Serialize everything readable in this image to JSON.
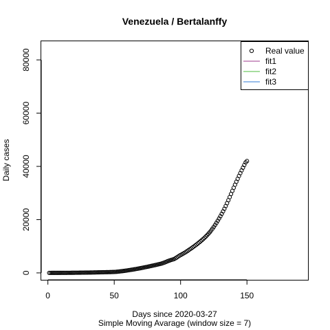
{
  "chart_data": {
    "type": "scatter",
    "title": "Venezuela / Bertalanffy",
    "xlabel": "Days since 2020-03-27",
    "xlabel2": "Simple Moving Avarage (window size = 7)",
    "ylabel": "Daily cases",
    "xlim": [
      -5,
      196
    ],
    "ylim": [
      -2600,
      87000
    ],
    "x_ticks": [
      0,
      50,
      100,
      150
    ],
    "y_ticks": [
      0,
      20000,
      40000,
      60000,
      80000
    ],
    "x_tick_labels": [
      "0",
      "50",
      "100",
      "150"
    ],
    "y_tick_labels": [
      "0",
      "20000",
      "40000",
      "60000",
      "80000"
    ],
    "grid": false,
    "legend_position": "top-right",
    "legend": [
      {
        "label": "Real value",
        "kind": "point",
        "color": "#000000"
      },
      {
        "label": "fit1",
        "kind": "line",
        "color": "#9e3a8c"
      },
      {
        "label": "fit2",
        "kind": "line",
        "color": "#4dbb3c"
      },
      {
        "label": "fit3",
        "kind": "line",
        "color": "#2f7bd6"
      }
    ],
    "series": [
      {
        "name": "Real value",
        "marker": "open-circle",
        "color": "#000000",
        "x_start": 1,
        "x_step": 1,
        "values": [
          3,
          4,
          6,
          7,
          8,
          10,
          11,
          13,
          14,
          16,
          17,
          19,
          21,
          23,
          26,
          28,
          32,
          38,
          46,
          52,
          59,
          64,
          68,
          74,
          82,
          91,
          99,
          106,
          113,
          120,
          129,
          139,
          149,
          159,
          171,
          183,
          194,
          203,
          210,
          220,
          231,
          243,
          256,
          264,
          274,
          289,
          306,
          320,
          335,
          352,
          380,
          425,
          480,
          540,
          600,
          660,
          720,
          790,
          860,
          935,
          1010,
          1090,
          1170,
          1250,
          1330,
          1420,
          1510,
          1600,
          1690,
          1790,
          1890,
          1990,
          2090,
          2190,
          2290,
          2400,
          2510,
          2620,
          2730,
          2840,
          2950,
          3060,
          3180,
          3300,
          3420,
          3560,
          3730,
          3920,
          4120,
          4330,
          4530,
          4710,
          4870,
          5020,
          5200,
          5450,
          5760,
          6090,
          6410,
          6700,
          6980,
          7250,
          7540,
          7850,
          8180,
          8520,
          8860,
          9200,
          9550,
          9910,
          10280,
          10660,
          11050,
          11450,
          11860,
          12280,
          12720,
          13180,
          13660,
          14170,
          14720,
          15300,
          15920,
          16580,
          17280,
          18020,
          18790,
          19590,
          20420,
          21280,
          22170,
          23100,
          24080,
          25110,
          26190,
          27310,
          28460,
          29630,
          30800,
          31960,
          33100,
          34220,
          35320,
          36400,
          37460,
          38500,
          39520,
          40520,
          41500,
          42000
        ]
      }
    ]
  }
}
